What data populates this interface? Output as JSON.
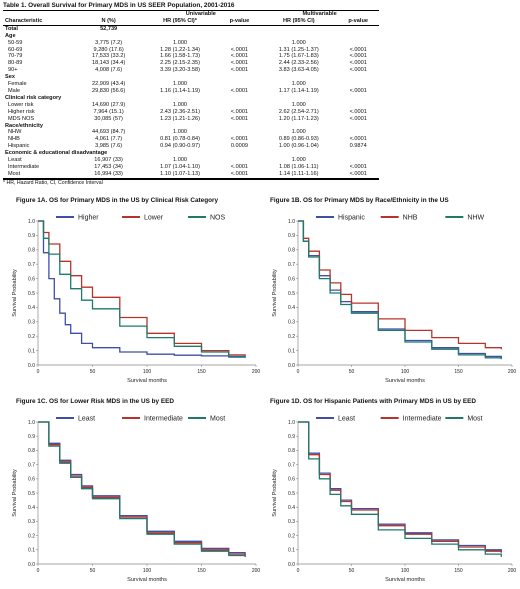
{
  "table": {
    "title": "Table 1. Overall Survival for Primary MDS in US SEER Population, 2001-2016",
    "group_univariable": "Univariable",
    "group_multivariable": "Multivariable",
    "headers": [
      "Characteristic",
      "N (%)",
      "HR (95% CI)*",
      "p-value",
      "HR (95% CI)",
      "p-value"
    ],
    "total": [
      "Total",
      "52,739"
    ],
    "rows": [
      {
        "type": "section",
        "label": "Age"
      },
      {
        "type": "row",
        "cells": [
          "50-59",
          "3,775 (7.2)",
          "1.000",
          "",
          "1.000",
          ""
        ]
      },
      {
        "type": "row",
        "cells": [
          "60-69",
          "9,280 (17.6)",
          "1.28 (1.22-1.34)",
          "<.0001",
          "1.31 (1.25-1.37)",
          "<.0001"
        ]
      },
      {
        "type": "row",
        "cells": [
          "70-79",
          "17,533 (33.2)",
          "1.66 (1.58-1.73)",
          "<.0001",
          "1.75 (1.67-1.83)",
          "<.0001"
        ]
      },
      {
        "type": "row",
        "cells": [
          "80-89",
          "18,143 (34.4)",
          "2.25 (2.15-2.35)",
          "<.0001",
          "2.44 (2.33-2.56)",
          "<.0001"
        ]
      },
      {
        "type": "row",
        "cells": [
          "90+",
          "4,008 (7.6)",
          "3.39 (3.20-3.58)",
          "<.0001",
          "3.83 (3.63-4.05)",
          "<.0001"
        ]
      },
      {
        "type": "section",
        "label": "Sex"
      },
      {
        "type": "row",
        "cells": [
          "Female",
          "22,909 (43.4)",
          "1.000",
          "",
          "1.000",
          ""
        ]
      },
      {
        "type": "row",
        "cells": [
          "Male",
          "29,830 (56.6)",
          "1.16 (1.14-1.19)",
          "<.0001",
          "1.17 (1.14-1.19)",
          "<.0001"
        ]
      },
      {
        "type": "section",
        "label": "Clinical risk category"
      },
      {
        "type": "row",
        "cells": [
          "Lower risk",
          "14,690 (27.9)",
          "1.000",
          "",
          "1.000",
          ""
        ]
      },
      {
        "type": "row",
        "cells": [
          "Higher risk",
          "7,964 (15.1)",
          "2.43 (2.36-2.51)",
          "<.0001",
          "2.62 (2.54-2.71)",
          "<.0001"
        ]
      },
      {
        "type": "row",
        "cells": [
          "MDS NOS",
          "30,085 (57)",
          "1.23 (1.21-1.26)",
          "<.0001",
          "1.20 (1.17-1.23)",
          "<.0001"
        ]
      },
      {
        "type": "section",
        "label": "Race/ethnicity"
      },
      {
        "type": "row",
        "cells": [
          "NHW",
          "44,693 (84.7)",
          "1.000",
          "",
          "1.000",
          ""
        ]
      },
      {
        "type": "row",
        "cells": [
          "NHB",
          "4,061 (7.7)",
          "0.81 (0.78-0.84)",
          "<.0001",
          "0.89 (0.86-0.93)",
          "<.0001"
        ]
      },
      {
        "type": "row",
        "cells": [
          "Hispanic",
          "3,985 (7.6)",
          "0.94 (0.90-0.97)",
          "0.0009",
          "1.00 (0.96-1.04)",
          "0.9874"
        ]
      },
      {
        "type": "section",
        "label": "Economic & educational disadvantage"
      },
      {
        "type": "row",
        "cells": [
          "Least",
          "16,907 (33)",
          "1.000",
          "",
          "1.000",
          ""
        ]
      },
      {
        "type": "row",
        "cells": [
          "Intermediate",
          "17,453 (34)",
          "1.07 (1.04-1.10)",
          "<.0001",
          "1.08 (1.06-1.11)",
          "<.0001"
        ]
      },
      {
        "type": "row",
        "cells": [
          "Most",
          "16,994 (33)",
          "1.10 (1.07-1.13)",
          "<.0001",
          "1.14 (1.11-1.16)",
          "<.0001"
        ]
      }
    ],
    "footnote": "* HR, Hazard Ratio, CI, Confidence Interval"
  },
  "figures": [
    {
      "id": "1A",
      "title": "Figure 1A. OS for Primary MDS in the US by Clinical Risk Category"
    },
    {
      "id": "1B",
      "title": "Figure 1B. OS for Primary MDS by Race/Ethnicity in the US"
    },
    {
      "id": "1C",
      "title": "Figure 1C. OS for Lower Risk MDS in the US by EED"
    },
    {
      "id": "1D",
      "title": "Figure 1D. OS for Hispanic Patients with Primary MDS in US by EED"
    }
  ],
  "chart_data": [
    {
      "type": "line",
      "title": "Figure 1A. OS for Primary MDS in the US by Clinical Risk Category",
      "xlabel": "Survival months",
      "ylabel": "Survival Probability",
      "xlim": [
        0,
        200
      ],
      "ylim": [
        0,
        1.0
      ],
      "xticks": [
        0,
        50,
        100,
        150,
        200
      ],
      "yticks": [
        0,
        0.1,
        0.2,
        0.3,
        0.4,
        0.5,
        0.6,
        0.7,
        0.8,
        0.9,
        1.0
      ],
      "legend": "top",
      "series": [
        {
          "name": "Higher",
          "color": "#3f4fa8",
          "x": [
            0,
            5,
            10,
            15,
            20,
            25,
            30,
            40,
            50,
            75,
            100,
            125,
            150,
            175,
            190
          ],
          "y": [
            1.0,
            0.78,
            0.6,
            0.46,
            0.36,
            0.28,
            0.22,
            0.15,
            0.12,
            0.09,
            0.075,
            0.068,
            0.063,
            0.055,
            0.05
          ]
        },
        {
          "name": "Lower",
          "color": "#b8342b",
          "x": [
            0,
            5,
            10,
            20,
            30,
            40,
            50,
            75,
            100,
            125,
            150,
            175,
            190
          ],
          "y": [
            1.0,
            0.92,
            0.84,
            0.72,
            0.62,
            0.54,
            0.47,
            0.33,
            0.22,
            0.15,
            0.1,
            0.07,
            0.06
          ]
        },
        {
          "name": "NOS",
          "color": "#1f7a6b",
          "x": [
            0,
            5,
            10,
            20,
            30,
            40,
            50,
            75,
            100,
            125,
            150,
            175,
            190
          ],
          "y": [
            1.0,
            0.88,
            0.77,
            0.63,
            0.53,
            0.45,
            0.39,
            0.27,
            0.19,
            0.13,
            0.09,
            0.06,
            0.05
          ]
        }
      ]
    },
    {
      "type": "line",
      "title": "Figure 1B. OS for Primary MDS by Race/Ethnicity in the US",
      "xlabel": "Survival months",
      "ylabel": "Survival Probability",
      "xlim": [
        0,
        200
      ],
      "ylim": [
        0,
        1.0
      ],
      "xticks": [
        0,
        50,
        100,
        150,
        200
      ],
      "yticks": [
        0,
        0.1,
        0.2,
        0.3,
        0.4,
        0.5,
        0.6,
        0.7,
        0.8,
        0.9,
        1.0
      ],
      "legend": "top",
      "series": [
        {
          "name": "Hispanic",
          "color": "#3f4fa8",
          "x": [
            0,
            5,
            10,
            20,
            30,
            40,
            50,
            75,
            100,
            125,
            150,
            175,
            190
          ],
          "y": [
            1.0,
            0.86,
            0.76,
            0.62,
            0.52,
            0.44,
            0.37,
            0.25,
            0.17,
            0.12,
            0.08,
            0.06,
            0.05
          ]
        },
        {
          "name": "NHB",
          "color": "#b8342b",
          "x": [
            0,
            5,
            10,
            20,
            30,
            40,
            50,
            75,
            100,
            125,
            150,
            175,
            190
          ],
          "y": [
            1.0,
            0.88,
            0.79,
            0.66,
            0.57,
            0.49,
            0.43,
            0.32,
            0.24,
            0.19,
            0.15,
            0.12,
            0.11
          ]
        },
        {
          "name": "NHW",
          "color": "#1f7a6b",
          "x": [
            0,
            5,
            10,
            20,
            30,
            40,
            50,
            75,
            100,
            125,
            150,
            175,
            190
          ],
          "y": [
            1.0,
            0.86,
            0.75,
            0.6,
            0.5,
            0.42,
            0.36,
            0.24,
            0.16,
            0.11,
            0.07,
            0.05,
            0.04
          ]
        }
      ]
    },
    {
      "type": "line",
      "title": "Figure 1C. OS for Lower Risk MDS in the US by EED",
      "xlabel": "Survival months",
      "ylabel": "Survival Probability",
      "xlim": [
        0,
        200
      ],
      "ylim": [
        0,
        1.0
      ],
      "xticks": [
        0,
        50,
        100,
        150,
        200
      ],
      "yticks": [
        0,
        0.1,
        0.2,
        0.3,
        0.4,
        0.5,
        0.6,
        0.7,
        0.8,
        0.9,
        1.0
      ],
      "legend": "top",
      "series": [
        {
          "name": "Least",
          "color": "#3f4fa8",
          "x": [
            0,
            10,
            20,
            30,
            40,
            50,
            75,
            100,
            125,
            150,
            175,
            190
          ],
          "y": [
            1.0,
            0.85,
            0.73,
            0.63,
            0.55,
            0.48,
            0.34,
            0.23,
            0.16,
            0.11,
            0.08,
            0.06
          ]
        },
        {
          "name": "Intermediate",
          "color": "#b8342b",
          "x": [
            0,
            10,
            20,
            30,
            40,
            50,
            75,
            100,
            125,
            150,
            175,
            190
          ],
          "y": [
            1.0,
            0.84,
            0.72,
            0.62,
            0.54,
            0.47,
            0.33,
            0.22,
            0.15,
            0.1,
            0.07,
            0.05
          ]
        },
        {
          "name": "Most",
          "color": "#1f7a6b",
          "x": [
            0,
            10,
            20,
            30,
            40,
            50,
            75,
            100,
            125,
            150,
            175,
            190
          ],
          "y": [
            1.0,
            0.83,
            0.71,
            0.61,
            0.53,
            0.46,
            0.32,
            0.21,
            0.14,
            0.09,
            0.06,
            0.05
          ]
        }
      ]
    },
    {
      "type": "line",
      "title": "Figure 1D. OS for Hispanic Patients with Primary MDS in US by EED",
      "xlabel": "Survival months",
      "ylabel": "Survival Probability",
      "xlim": [
        0,
        200
      ],
      "ylim": [
        0,
        1.0
      ],
      "xticks": [
        0,
        50,
        100,
        150,
        200
      ],
      "yticks": [
        0,
        0.1,
        0.2,
        0.3,
        0.4,
        0.5,
        0.6,
        0.7,
        0.8,
        0.9,
        1.0
      ],
      "legend": "top",
      "series": [
        {
          "name": "Least",
          "color": "#3f4fa8",
          "x": [
            0,
            10,
            20,
            30,
            40,
            50,
            75,
            100,
            125,
            150,
            175,
            190
          ],
          "y": [
            1.0,
            0.78,
            0.64,
            0.53,
            0.45,
            0.39,
            0.28,
            0.22,
            0.17,
            0.13,
            0.1,
            0.08
          ]
        },
        {
          "name": "Intermediate",
          "color": "#b8342b",
          "x": [
            0,
            10,
            20,
            30,
            40,
            50,
            75,
            100,
            125,
            150,
            175,
            190
          ],
          "y": [
            1.0,
            0.77,
            0.63,
            0.52,
            0.44,
            0.38,
            0.27,
            0.21,
            0.16,
            0.12,
            0.09,
            0.08
          ]
        },
        {
          "name": "Most",
          "color": "#1f7a6b",
          "x": [
            0,
            10,
            20,
            30,
            40,
            50,
            75,
            100,
            125,
            150,
            175,
            190
          ],
          "y": [
            1.0,
            0.74,
            0.6,
            0.49,
            0.41,
            0.35,
            0.24,
            0.18,
            0.14,
            0.1,
            0.07,
            0.05
          ]
        }
      ]
    }
  ]
}
